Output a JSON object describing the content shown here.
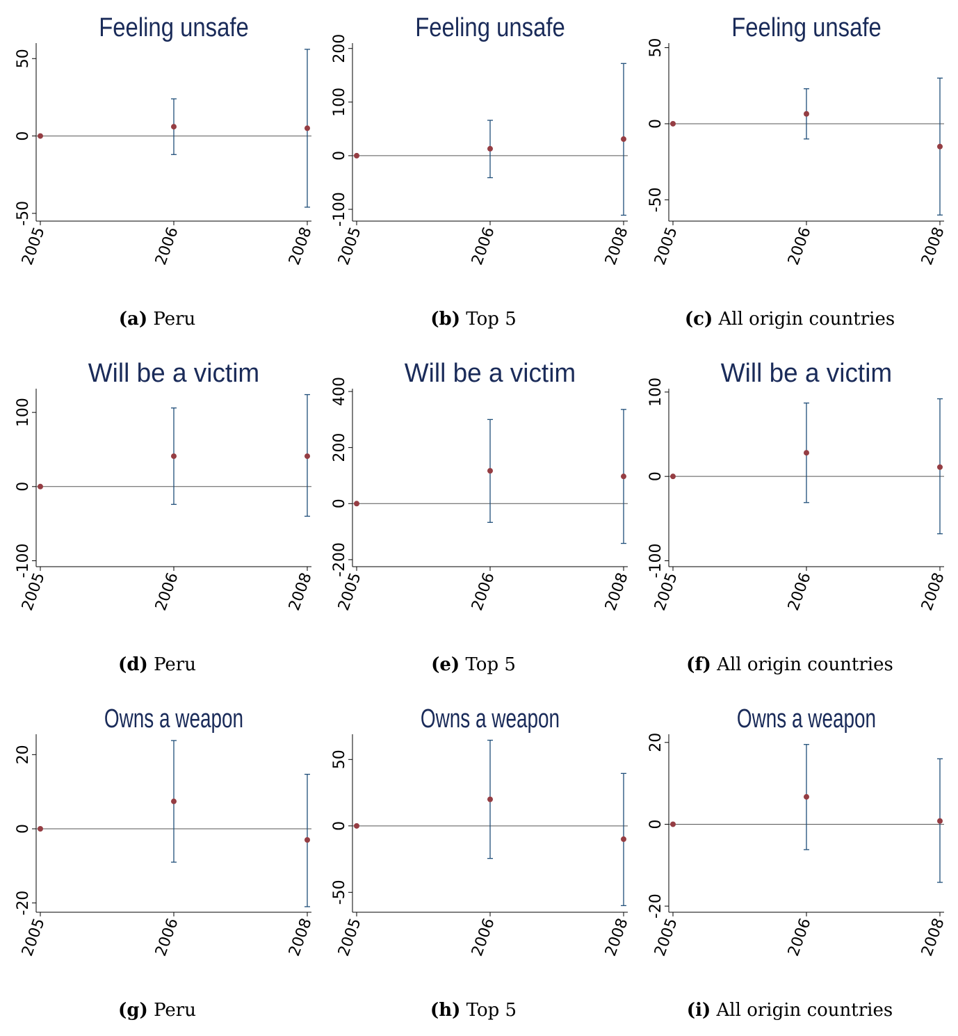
{
  "chart_data": [
    {
      "panel": "a",
      "letter": "(a)",
      "caption": "Peru",
      "type": "scatter",
      "title": "Feeling unsafe",
      "x": [
        "2005",
        "2006",
        "2008"
      ],
      "estimates": [
        0,
        6,
        5
      ],
      "ci_low": [
        null,
        -12,
        -46
      ],
      "ci_high": [
        null,
        24,
        56
      ],
      "yticks": [
        50,
        0,
        -50
      ],
      "ylim": [
        -55,
        60
      ]
    },
    {
      "panel": "b",
      "letter": "(b)",
      "caption": "Top 5",
      "type": "scatter",
      "title": "Feeling unsafe",
      "x": [
        "2005",
        "2006",
        "2008"
      ],
      "estimates": [
        0,
        13,
        31
      ],
      "ci_low": [
        null,
        -41,
        -111
      ],
      "ci_high": [
        null,
        66,
        172
      ],
      "yticks": [
        200,
        100,
        0,
        -100
      ],
      "ylim": [
        -122,
        210
      ]
    },
    {
      "panel": "c",
      "letter": "(c)",
      "caption": "All origin countries",
      "type": "scatter",
      "title": "Feeling unsafe",
      "x": [
        "2005",
        "2006",
        "2008"
      ],
      "estimates": [
        0,
        6.5,
        -15
      ],
      "ci_low": [
        null,
        -10,
        -60
      ],
      "ci_high": [
        null,
        23,
        30
      ],
      "yticks": [
        50,
        0,
        -50
      ],
      "ylim": [
        -64,
        53
      ]
    },
    {
      "panel": "d",
      "letter": "(d)",
      "caption": "Peru",
      "type": "scatter",
      "title": "Will be a victim",
      "x": [
        "2005",
        "2006",
        "2008"
      ],
      "estimates": [
        0,
        41,
        41
      ],
      "ci_low": [
        null,
        -24,
        -40
      ],
      "ci_high": [
        null,
        106,
        124
      ],
      "yticks": [
        100,
        0,
        -100
      ],
      "ylim": [
        -108,
        132
      ]
    },
    {
      "panel": "e",
      "letter": "(e)",
      "caption": "Top 5",
      "type": "scatter",
      "title": "Will be a victim",
      "x": [
        "2005",
        "2006",
        "2008"
      ],
      "estimates": [
        0,
        117,
        97
      ],
      "ci_low": [
        null,
        -67,
        -142
      ],
      "ci_high": [
        null,
        300,
        336
      ],
      "yticks": [
        400,
        200,
        0,
        -200
      ],
      "ylim": [
        -225,
        410
      ]
    },
    {
      "panel": "f",
      "letter": "(f)",
      "caption": "All origin countries",
      "type": "scatter",
      "title": "Will be a victim",
      "x": [
        "2005",
        "2006",
        "2008"
      ],
      "estimates": [
        0,
        28,
        11
      ],
      "ci_low": [
        null,
        -31,
        -68
      ],
      "ci_high": [
        null,
        87,
        92
      ],
      "yticks": [
        100,
        0,
        -100
      ],
      "ylim": [
        -107,
        104
      ]
    },
    {
      "panel": "g",
      "letter": "(g)",
      "caption": "Peru",
      "type": "scatter",
      "title": "Owns a weapon",
      "x": [
        "2005",
        "2006",
        "2008"
      ],
      "estimates": [
        0,
        7.4,
        -3
      ],
      "ci_low": [
        null,
        -9,
        -21
      ],
      "ci_high": [
        null,
        23.8,
        14.7
      ],
      "yticks": [
        20,
        0,
        -20
      ],
      "ylim": [
        -22.5,
        25.5
      ]
    },
    {
      "panel": "h",
      "letter": "(h)",
      "caption": "Top 5",
      "type": "scatter",
      "title": "Owns a weapon",
      "x": [
        "2005",
        "2006",
        "2008"
      ],
      "estimates": [
        0,
        20,
        -10
      ],
      "ci_low": [
        null,
        -24.5,
        -60
      ],
      "ci_high": [
        null,
        64.5,
        39.5
      ],
      "yticks": [
        50,
        0,
        -50
      ],
      "ylim": [
        -65,
        69
      ]
    },
    {
      "panel": "i",
      "letter": "(i)",
      "caption": "All origin countries",
      "type": "scatter",
      "title": "Owns a weapon",
      "x": [
        "2005",
        "2006",
        "2008"
      ],
      "estimates": [
        0,
        6.7,
        0.8
      ],
      "ci_low": [
        null,
        -6.2,
        -14.2
      ],
      "ci_high": [
        null,
        19.5,
        16
      ],
      "yticks": [
        20,
        0,
        -20
      ],
      "ylim": [
        -21.5,
        22
      ]
    }
  ],
  "colors": {
    "point": "#953d43",
    "ci": "#1f4e79",
    "axis": "#000000",
    "zero_line": "#555555",
    "title": "#1a2b59"
  }
}
